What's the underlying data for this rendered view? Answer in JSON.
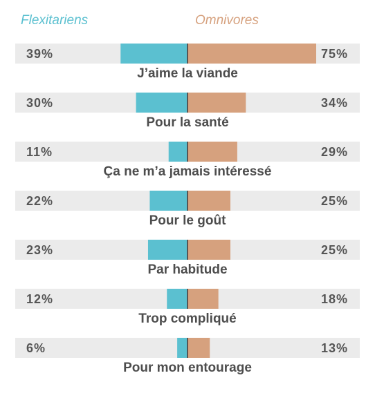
{
  "legend": {
    "left": "Flexitariens",
    "right": "Omnivores"
  },
  "colors": {
    "flexitariens": "#5bc0d0",
    "omnivores": "#d6a17e",
    "track": "#ebebeb",
    "divider": "#555555",
    "text": "#555555"
  },
  "chart_data": {
    "type": "bar",
    "orientation": "horizontal-diverging",
    "categories": [
      "J’aime la viande",
      "Pour la santé",
      "Ça ne m’a jamais intéressé",
      "Pour le goût",
      "Par habitude",
      "Trop compliqué",
      "Pour mon entourage"
    ],
    "series": [
      {
        "name": "Flexitariens",
        "values": [
          39,
          30,
          11,
          22,
          23,
          12,
          6
        ],
        "labels": [
          "39%",
          "30%",
          "11%",
          "22%",
          "23%",
          "12%",
          "6%"
        ]
      },
      {
        "name": "Omnivores",
        "values": [
          75,
          34,
          29,
          25,
          25,
          18,
          13
        ],
        "labels": [
          "75%",
          "34%",
          "29%",
          "25%",
          "25%",
          "18%",
          "13%"
        ]
      }
    ],
    "unit": "%",
    "legend_position": "top"
  }
}
